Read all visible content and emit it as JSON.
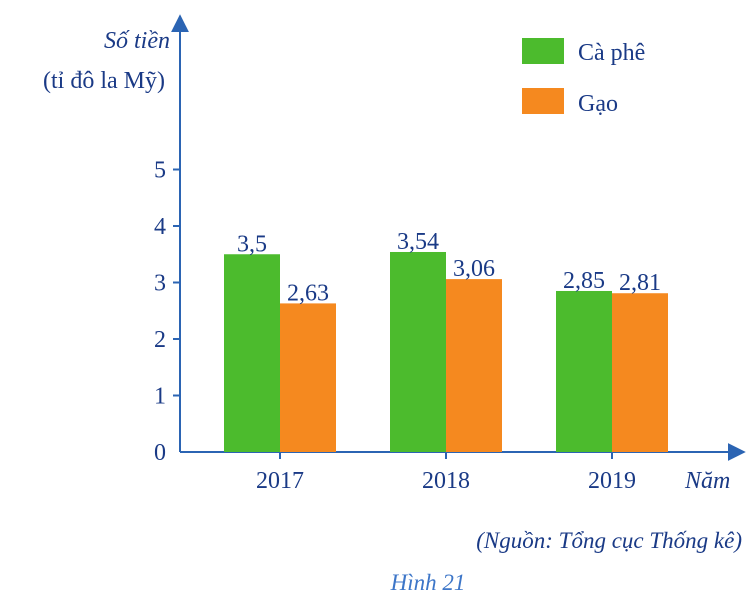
{
  "chart_data": {
    "type": "bar",
    "categories": [
      "2017",
      "2018",
      "2019"
    ],
    "series": [
      {
        "name": "Cà phê",
        "color": "#4cbb2d",
        "values": [
          3.5,
          3.54,
          2.85
        ],
        "labels": [
          "3,5",
          "3,54",
          "2,85"
        ]
      },
      {
        "name": "Gạo",
        "color": "#f5891f",
        "values": [
          2.63,
          3.06,
          2.81
        ],
        "labels": [
          "2,63",
          "3,06",
          "2,81"
        ]
      }
    ],
    "ylabel_line1": "Số tiền",
    "ylabel_line2": "(tỉ đô la Mỹ)",
    "xlabel": "Năm",
    "y_ticks": [
      "0",
      "1",
      "2",
      "3",
      "4",
      "5"
    ],
    "ylim": [
      0,
      5
    ],
    "legend_position": "top-right",
    "grid": false,
    "source": "(Nguồn: Tổng cục Thống kê)",
    "caption": "Hình 21",
    "axis_color": "#2b64b3"
  }
}
